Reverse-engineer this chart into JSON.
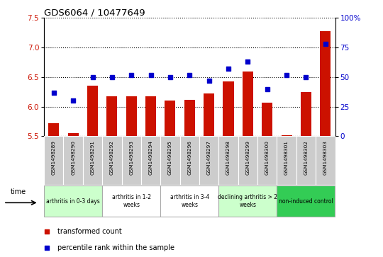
{
  "title": "GDS6064 / 10477649",
  "samples": [
    "GSM1498289",
    "GSM1498290",
    "GSM1498291",
    "GSM1498292",
    "GSM1498293",
    "GSM1498294",
    "GSM1498295",
    "GSM1498296",
    "GSM1498297",
    "GSM1498298",
    "GSM1498299",
    "GSM1498300",
    "GSM1498301",
    "GSM1498302",
    "GSM1498303"
  ],
  "bar_values": [
    5.72,
    5.55,
    6.35,
    6.18,
    6.18,
    6.18,
    6.1,
    6.12,
    6.22,
    6.43,
    6.6,
    6.07,
    5.52,
    6.25,
    7.28
  ],
  "dot_values": [
    37,
    30,
    50,
    50,
    52,
    52,
    50,
    52,
    47,
    57,
    63,
    40,
    52,
    50,
    78
  ],
  "ylim_left": [
    5.5,
    7.5
  ],
  "ylim_right": [
    0,
    100
  ],
  "yticks_left": [
    5.5,
    6.0,
    6.5,
    7.0,
    7.5
  ],
  "yticks_right": [
    0,
    25,
    50,
    75,
    100
  ],
  "bar_color": "#cc1100",
  "dot_color": "#0000cc",
  "bar_bottom": 5.5,
  "groups": [
    {
      "label": "arthritis in 0-3 days",
      "start": 0,
      "end": 3,
      "color": "#ccffcc"
    },
    {
      "label": "arthritis in 1-2\nweeks",
      "start": 3,
      "end": 6,
      "color": "#ffffff"
    },
    {
      "label": "arthritis in 3-4\nweeks",
      "start": 6,
      "end": 9,
      "color": "#ffffff"
    },
    {
      "label": "declining arthritis > 2\nweeks",
      "start": 9,
      "end": 12,
      "color": "#ccffcc"
    },
    {
      "label": "non-induced control",
      "start": 12,
      "end": 15,
      "color": "#33cc55"
    }
  ],
  "group_colors": [
    "#ccffcc",
    "#ffffff",
    "#ffffff",
    "#ccffcc",
    "#33cc55"
  ],
  "legend_items": [
    {
      "label": "transformed count",
      "color": "#cc1100"
    },
    {
      "label": "percentile rank within the sample",
      "color": "#0000cc"
    }
  ],
  "tick_label_color_left": "#cc1100",
  "tick_label_color_right": "#0000cc",
  "sample_bg_color": "#cccccc",
  "group_edge_color": "#aaaaaa"
}
